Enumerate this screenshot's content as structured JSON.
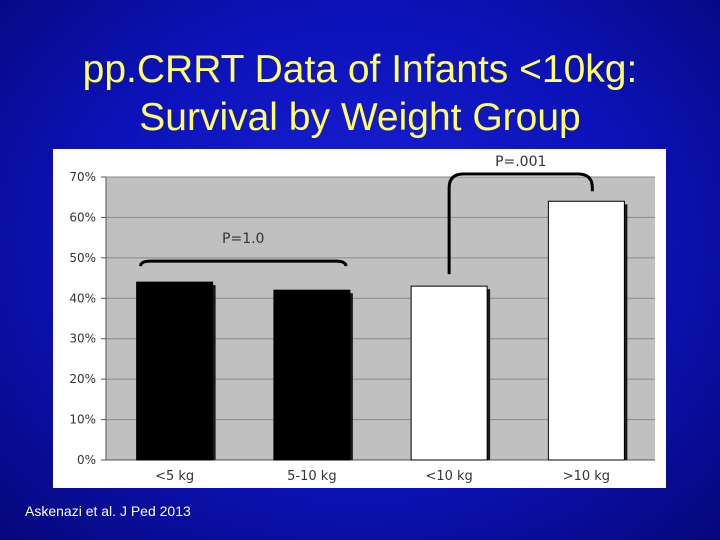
{
  "slide": {
    "title_line1": "pp.CRRT Data of Infants <10kg:",
    "title_line2": "Survival by Weight Group",
    "citation": "Askenazi et al. J Ped 2013"
  },
  "colors": {
    "background": "#0c12b8",
    "title": "#ffff66",
    "plot_area": "#c0c0c0",
    "bar_dark": "#000000",
    "bar_light": "#ffffff"
  },
  "chart_data": {
    "type": "bar",
    "categories": [
      "<5 kg",
      "5-10 kg",
      "<10 kg",
      ">10 kg"
    ],
    "values": [
      44,
      42,
      43,
      64
    ],
    "bar_colors": [
      "#000000",
      "#000000",
      "#ffffff",
      "#ffffff"
    ],
    "ylim": [
      0,
      70
    ],
    "yticks": [
      0,
      10,
      20,
      30,
      40,
      50,
      60,
      70
    ],
    "ytick_labels": [
      "0%",
      "10%",
      "20%",
      "30%",
      "40%",
      "50%",
      "60%",
      "70%"
    ],
    "grid": true,
    "annotations": [
      {
        "label": "P=1.0",
        "from": 0,
        "to": 1
      },
      {
        "label": "P=.001",
        "from": 2,
        "to": 3
      }
    ]
  }
}
